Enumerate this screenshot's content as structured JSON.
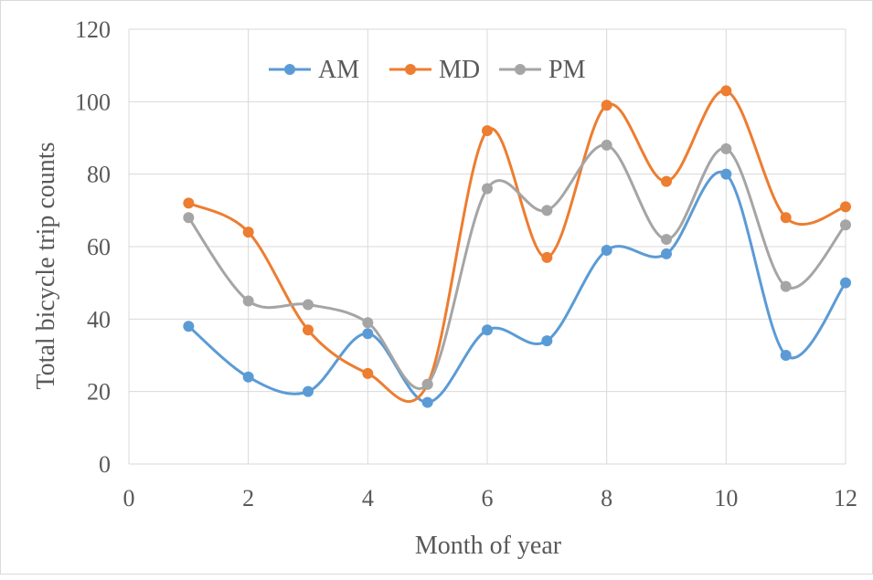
{
  "chart_data": {
    "type": "line",
    "smooth": true,
    "title": "",
    "xlabel": "Month of year",
    "ylabel": "Total bicycle trip counts",
    "xlim": [
      0,
      12
    ],
    "ylim": [
      0,
      120
    ],
    "x_ticks": [
      0,
      2,
      4,
      6,
      8,
      10,
      12
    ],
    "y_ticks": [
      0,
      20,
      40,
      60,
      80,
      100,
      120
    ],
    "grid": "horizontal",
    "legend_position": "top-center",
    "x": [
      1,
      2,
      3,
      4,
      5,
      6,
      7,
      8,
      9,
      10,
      11,
      12
    ],
    "series": [
      {
        "name": "AM",
        "color": "#5b9bd5",
        "values": [
          38,
          24,
          20,
          36,
          17,
          37,
          34,
          59,
          58,
          80,
          30,
          50
        ]
      },
      {
        "name": "MD",
        "color": "#ed7d31",
        "values": [
          72,
          64,
          37,
          25,
          22,
          92,
          57,
          99,
          78,
          103,
          68,
          71
        ]
      },
      {
        "name": "PM",
        "color": "#a5a5a5",
        "values": [
          68,
          45,
          44,
          39,
          22,
          76,
          70,
          88,
          62,
          87,
          49,
          66
        ]
      }
    ]
  }
}
